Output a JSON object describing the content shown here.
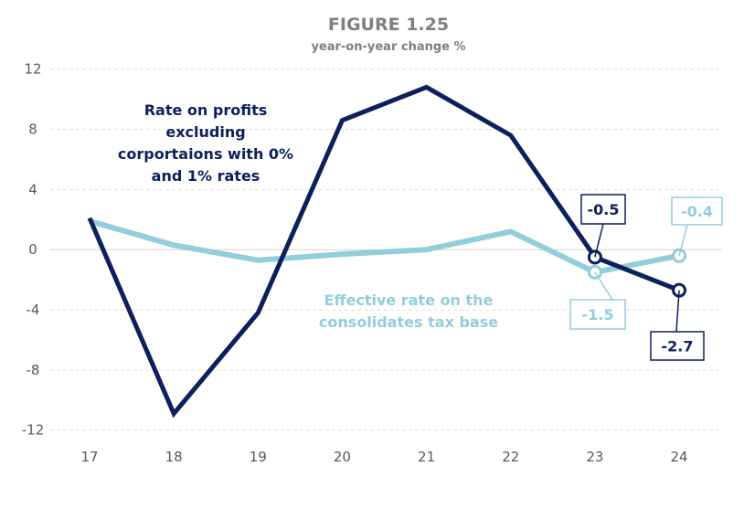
{
  "chart_data": {
    "type": "line",
    "title": "FIGURE 1.25",
    "subtitle": "year-on-year change %",
    "xlabel": "",
    "ylabel": "",
    "categories": [
      "17",
      "18",
      "19",
      "20",
      "21",
      "22",
      "23",
      "24"
    ],
    "ylim": [
      -12,
      12
    ],
    "yticks": [
      "12",
      "8",
      "4",
      "0",
      "-4",
      "-8",
      "-12"
    ],
    "grid": true,
    "series": [
      {
        "name": "Rate on profits excluding corportaions with 0% and 1% rates",
        "name_lines": [
          "Rate on profits",
          "excluding",
          "corportaions with 0%",
          "and 1% rates"
        ],
        "color": "#0d1f5c",
        "values": [
          2.1,
          -10.9,
          -4.2,
          8.6,
          10.8,
          7.6,
          -0.5,
          -2.7
        ],
        "labels": {
          "23": "-0.5",
          "24": "-2.7"
        }
      },
      {
        "name": "Effective rate on the consolidates tax base",
        "name_lines": [
          "Effective rate on the",
          "consolidates tax base"
        ],
        "color": "#92cddc",
        "values": [
          1.9,
          0.3,
          -0.7,
          -0.3,
          0.0,
          1.2,
          -1.5,
          -0.4
        ],
        "labels": {
          "23": "-1.5",
          "24": "-0.4"
        }
      }
    ]
  }
}
